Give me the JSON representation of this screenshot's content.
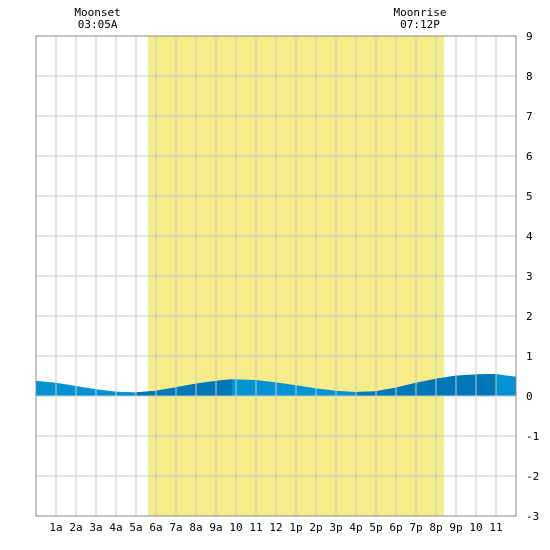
{
  "chart_data": {
    "type": "area",
    "title": "",
    "xlabel": "",
    "ylabel": "",
    "x_range_hours": [
      0,
      24
    ],
    "ylim": [
      -3,
      9
    ],
    "y_ticks": [
      9,
      8,
      7,
      6,
      5,
      4,
      3,
      2,
      1,
      0,
      -1,
      -2,
      -3
    ],
    "x_tick_labels": [
      "1a",
      "2a",
      "3a",
      "4a",
      "5a",
      "6a",
      "7a",
      "8a",
      "9a",
      "10",
      "11",
      "12",
      "1p",
      "2p",
      "3p",
      "4p",
      "5p",
      "6p",
      "7p",
      "8p",
      "9p",
      "10",
      "11"
    ],
    "grid": true,
    "daylight": {
      "start_hour": 5.6,
      "end_hour": 20.4,
      "color": "#f5ec8a"
    },
    "moon_events": [
      {
        "label": "Moonset",
        "time": "03:05A",
        "hour": 3.08
      },
      {
        "label": "Moonrise",
        "time": "07:12P",
        "hour": 19.2
      }
    ],
    "tide_curve": {
      "x_hours": [
        0,
        1,
        2,
        3,
        4,
        5,
        6,
        7,
        8,
        9,
        9.8,
        11,
        12,
        13,
        14,
        15,
        16,
        17,
        18,
        19,
        20,
        21,
        22,
        23,
        24
      ],
      "values": [
        0.38,
        0.33,
        0.25,
        0.17,
        0.11,
        0.09,
        0.13,
        0.22,
        0.31,
        0.38,
        0.42,
        0.4,
        0.34,
        0.27,
        0.19,
        0.13,
        0.1,
        0.12,
        0.21,
        0.33,
        0.43,
        0.51,
        0.54,
        0.55,
        0.48
      ],
      "colors": {
        "light": "#0393d3",
        "dark": "#0077b6"
      }
    }
  }
}
